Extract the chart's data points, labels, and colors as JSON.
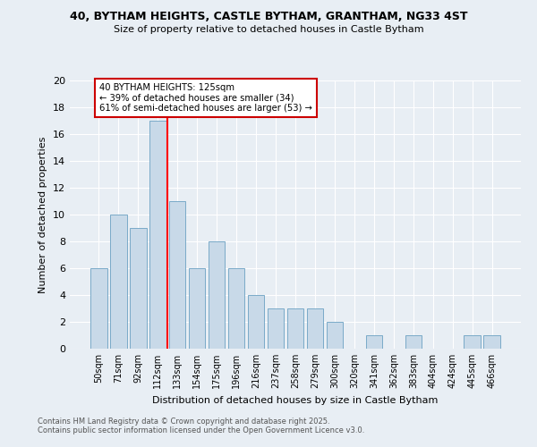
{
  "title1": "40, BYTHAM HEIGHTS, CASTLE BYTHAM, GRANTHAM, NG33 4ST",
  "title2": "Size of property relative to detached houses in Castle Bytham",
  "xlabel": "Distribution of detached houses by size in Castle Bytham",
  "ylabel": "Number of detached properties",
  "categories": [
    "50sqm",
    "71sqm",
    "92sqm",
    "112sqm",
    "133sqm",
    "154sqm",
    "175sqm",
    "196sqm",
    "216sqm",
    "237sqm",
    "258sqm",
    "279sqm",
    "300sqm",
    "320sqm",
    "341sqm",
    "362sqm",
    "383sqm",
    "404sqm",
    "424sqm",
    "445sqm",
    "466sqm"
  ],
  "values": [
    6,
    10,
    9,
    17,
    11,
    6,
    8,
    6,
    4,
    3,
    3,
    3,
    2,
    0,
    1,
    0,
    1,
    0,
    0,
    1,
    1
  ],
  "bar_color": "#c8d9e8",
  "bar_edge_color": "#7aaac8",
  "background_color": "#e8eef4",
  "grid_color": "#ffffff",
  "red_line_x": 3.5,
  "annotation_text": "40 BYTHAM HEIGHTS: 125sqm\n← 39% of detached houses are smaller (34)\n61% of semi-detached houses are larger (53) →",
  "annotation_box_color": "#ffffff",
  "annotation_box_edge": "#cc0000",
  "ylim": [
    0,
    20
  ],
  "yticks": [
    0,
    2,
    4,
    6,
    8,
    10,
    12,
    14,
    16,
    18,
    20
  ],
  "footnote1": "Contains HM Land Registry data © Crown copyright and database right 2025.",
  "footnote2": "Contains public sector information licensed under the Open Government Licence v3.0."
}
